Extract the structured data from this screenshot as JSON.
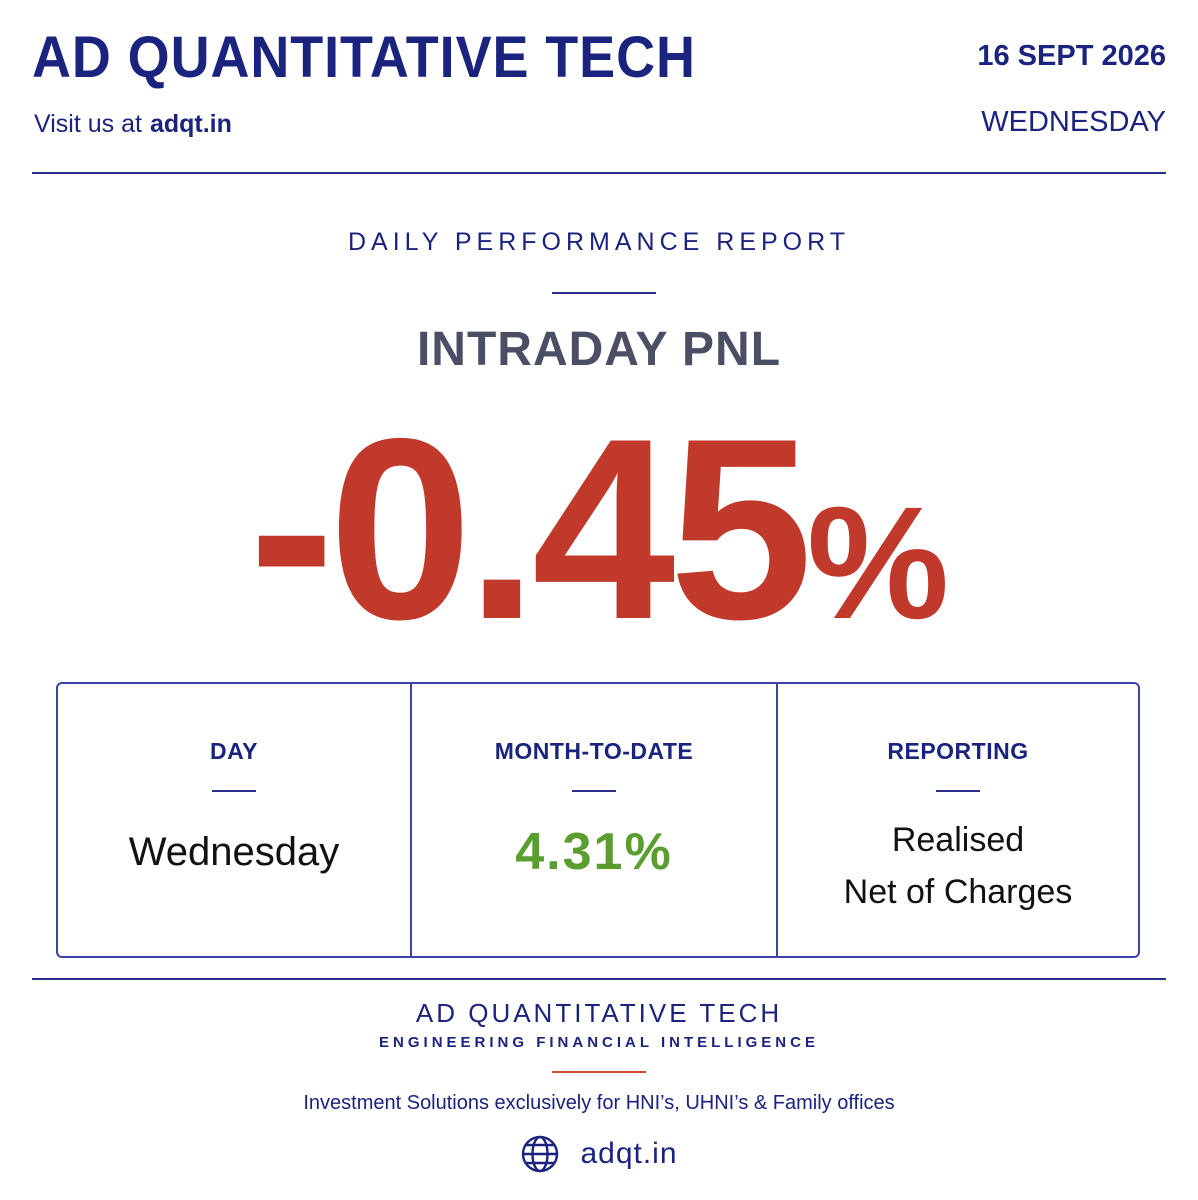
{
  "header": {
    "brand": "AD QUANTITATIVE TECH",
    "visit_prefix": "Visit us at",
    "visit_url": "adqt.in",
    "date": "16 SEPT 2026",
    "weekday": "WEDNESDAY"
  },
  "report": {
    "title": "DAILY PERFORMANCE REPORT",
    "pnl_label": "INTRADAY PNL",
    "pnl_number": "-0.45",
    "pnl_unit": "%"
  },
  "stats": [
    {
      "label": "DAY",
      "value": "Wednesday"
    },
    {
      "label": "MONTH-TO-DATE",
      "value": "4.31%"
    },
    {
      "label": "REPORTING",
      "value_line1": "Realised",
      "value_line2": "Net of Charges"
    }
  ],
  "footer": {
    "brand": "AD QUANTITATIVE TECH",
    "tagline": "ENGINEERING FINANCIAL INTELLIGENCE",
    "description": "Investment Solutions exclusively for HNI’s, UHNI’s & Family offices",
    "url": "adqt.in",
    "icon": "globe-icon"
  },
  "colors": {
    "brand_navy": "#1a237e",
    "negative_red": "#c0392b",
    "positive_green": "#5a9e2f",
    "accent_red": "#d14b3d"
  }
}
